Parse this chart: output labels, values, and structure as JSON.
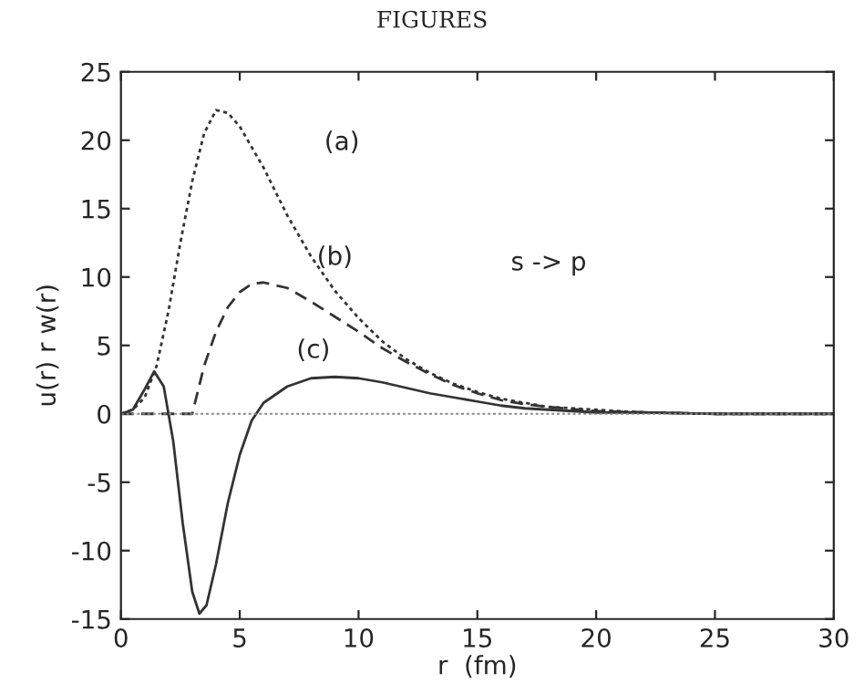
{
  "chart_data": {
    "type": "line",
    "title": "FIGURES",
    "xlabel": "r  (fm)",
    "ylabel": "u(r) r w(r)",
    "xlim": [
      0,
      30
    ],
    "xticks": [
      0,
      5,
      10,
      15,
      20,
      25,
      30
    ],
    "ylim": [
      -15,
      25
    ],
    "yticks": [
      -15,
      -10,
      -5,
      0,
      5,
      10,
      15,
      20,
      25
    ],
    "grid": false,
    "legend": false,
    "marker": "none",
    "ref_lines": [
      {
        "axis": "y",
        "value": 0,
        "color": "#888888",
        "line_style": "dotted"
      }
    ],
    "series": [
      {
        "color": "#333333",
        "line_style": "dotted",
        "x": [
          0,
          0.5,
          1,
          1.5,
          2,
          2.5,
          3,
          3.5,
          4,
          4.5,
          5,
          6,
          7,
          8,
          9,
          10,
          11,
          12,
          13,
          14,
          15,
          16,
          17,
          18,
          20,
          22,
          25,
          30
        ],
        "values": [
          0,
          0.3,
          1.2,
          3.5,
          7.5,
          12.5,
          17,
          20.5,
          22.2,
          22,
          21,
          18,
          14.5,
          11.5,
          9,
          7,
          5.3,
          4,
          3,
          2.2,
          1.6,
          1.1,
          0.8,
          0.5,
          0.3,
          0.1,
          0,
          0
        ]
      },
      {
        "color": "#333333",
        "line_style": "dashed",
        "x": [
          0,
          1,
          2,
          3,
          3.5,
          4,
          4.5,
          5,
          5.5,
          6,
          7,
          8,
          9,
          10,
          11,
          12,
          13,
          14,
          15,
          16,
          17,
          18,
          20,
          22,
          25,
          30
        ],
        "values": [
          0,
          0,
          0,
          0,
          3.5,
          6,
          7.8,
          8.9,
          9.5,
          9.6,
          9.2,
          8.2,
          7.1,
          6,
          4.8,
          3.8,
          2.9,
          2.1,
          1.5,
          1,
          0.7,
          0.5,
          0.2,
          0.1,
          0,
          0
        ]
      },
      {
        "color": "#333333",
        "line_style": "solid",
        "x": [
          0,
          0.5,
          1,
          1.4,
          1.8,
          2.2,
          2.6,
          3,
          3.3,
          3.6,
          4,
          4.5,
          5,
          5.5,
          6,
          7,
          8,
          9,
          10,
          11,
          12,
          13,
          14,
          15,
          16,
          17,
          18,
          20,
          22,
          25,
          30
        ],
        "values": [
          0,
          0.3,
          1.8,
          3.1,
          2,
          -2,
          -8,
          -13,
          -14.6,
          -14,
          -11,
          -6.5,
          -3,
          -0.5,
          0.8,
          2,
          2.6,
          2.7,
          2.6,
          2.3,
          1.9,
          1.5,
          1.2,
          0.9,
          0.6,
          0.4,
          0.3,
          0.1,
          0.1,
          0,
          0
        ]
      }
    ],
    "annotations": [
      "(a)",
      "(b)",
      "(c)",
      "s -> p"
    ]
  }
}
